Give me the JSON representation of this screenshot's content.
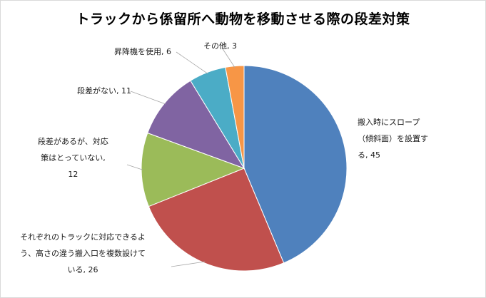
{
  "chart_data": {
    "type": "pie",
    "title": "トラックから係留所へ動物を移動させる際の段差対策",
    "slices": [
      {
        "label_lines": [
          "搬入時にスロープ",
          "（傾斜面）を設置す",
          "る, 45"
        ],
        "value": 45,
        "color": "#4f81bd"
      },
      {
        "label_lines": [
          "それぞれのトラックに対応できるよ",
          "う、高さの違う搬入口を複数設けて",
          "いる, 26"
        ],
        "value": 26,
        "color": "#c0504d"
      },
      {
        "label_lines": [
          "段差があるが、対応",
          "策はとっていない,",
          "12"
        ],
        "value": 12,
        "color": "#9bbb59"
      },
      {
        "label_lines": [
          "段差がない, 11"
        ],
        "value": 11,
        "color": "#8064a2"
      },
      {
        "label_lines": [
          "昇降機を使用, 6"
        ],
        "value": 6,
        "color": "#4bacc6"
      },
      {
        "label_lines": [
          "その他, 3"
        ],
        "value": 3,
        "color": "#f79646"
      }
    ],
    "start_angle": "12 o'clock",
    "direction": "clockwise",
    "legend": "none"
  }
}
